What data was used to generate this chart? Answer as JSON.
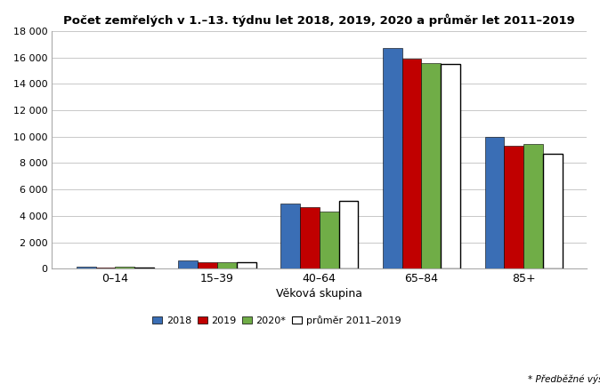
{
  "title": "Počet zemřelých v 1.–13. týdnu let 2018, 2019, 2020 a průměr let 2011–2019",
  "categories": [
    "0–14",
    "15–39",
    "40–64",
    "65–84",
    "85+"
  ],
  "series": {
    "2018": [
      130,
      590,
      4950,
      16700,
      9950
    ],
    "2019": [
      110,
      500,
      4650,
      15900,
      9300
    ],
    "2020*": [
      150,
      490,
      4300,
      15550,
      9450
    ],
    "průměr 2011–2019": [
      115,
      490,
      5100,
      15500,
      8700
    ]
  },
  "colors": {
    "2018": "#3A6EB5",
    "2019": "#C00000",
    "2020*": "#70AD47",
    "průměr 2011–2019": "#FFFFFF"
  },
  "bar_edge_color": "#000000",
  "xlabel": "Věková skupina",
  "ylim": [
    0,
    18000
  ],
  "yticks": [
    0,
    2000,
    4000,
    6000,
    8000,
    10000,
    12000,
    14000,
    16000,
    18000
  ],
  "ytick_labels": [
    "0",
    "2 000",
    "4 000",
    "6 000",
    "8 000",
    "10 000",
    "12 000",
    "14 000",
    "16 000",
    "18 000"
  ],
  "legend_labels": [
    "2018",
    "2019",
    "2020*",
    "průměr 2011–2019"
  ],
  "note": "* Předběžné výsledky",
  "background_color": "#FFFFFF",
  "grid_color": "#BFBFBF",
  "figsize": [
    6.74,
    4.41
  ],
  "dpi": 100
}
